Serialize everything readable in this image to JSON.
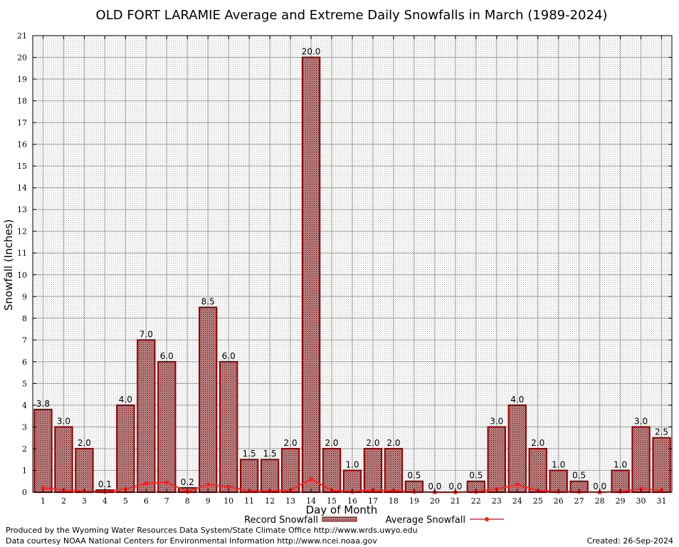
{
  "chart_data": {
    "type": "bar",
    "title": "OLD FORT LARAMIE Average and Extreme Daily Snowfalls in March (1989-2024)",
    "xlabel": "Day of Month",
    "ylabel": "Snowfall (Inches)",
    "ylim": [
      0,
      21
    ],
    "yticks": [
      "0",
      "1",
      "2",
      "3",
      "4",
      "5",
      "6",
      "7",
      "8",
      "9",
      "10",
      "11",
      "12",
      "13",
      "14",
      "15",
      "16",
      "17",
      "18",
      "19",
      "20",
      "21"
    ],
    "categories": [
      "1",
      "2",
      "3",
      "4",
      "5",
      "6",
      "7",
      "8",
      "9",
      "10",
      "11",
      "12",
      "13",
      "14",
      "15",
      "16",
      "17",
      "18",
      "19",
      "20",
      "21",
      "22",
      "23",
      "24",
      "25",
      "26",
      "27",
      "28",
      "29",
      "30",
      "31"
    ],
    "grid": true,
    "legend_position": "bottom",
    "series": [
      {
        "name": "Record Snowfall",
        "type": "bar",
        "color": "#8b0000",
        "values": [
          3.8,
          3.0,
          2.0,
          0.1,
          4.0,
          7.0,
          6.0,
          0.2,
          8.5,
          6.0,
          1.5,
          1.5,
          2.0,
          20.0,
          2.0,
          1.0,
          2.0,
          2.0,
          0.5,
          0.0,
          0.0,
          0.5,
          3.0,
          4.0,
          2.0,
          1.0,
          0.5,
          0.0,
          1.0,
          3.0,
          2.5
        ],
        "labels": [
          "3.8",
          "3.0",
          "2.0",
          "0.1",
          "4.0",
          "7.0",
          "6.0",
          "0.2",
          "8.5",
          "6.0",
          "1.5",
          "1.5",
          "2.0",
          "20.0",
          "2.0",
          "1.0",
          "2.0",
          "2.0",
          "0.5",
          "0.0",
          "0.0",
          "0.5",
          "3.0",
          "4.0",
          "2.0",
          "1.0",
          "0.5",
          "0.0",
          "1.0",
          "3.0",
          "2.5"
        ]
      },
      {
        "name": "Average Snowfall",
        "type": "line",
        "color": "#ff2020",
        "values": [
          0.2,
          0.1,
          0.05,
          0.02,
          0.15,
          0.4,
          0.45,
          0.03,
          0.35,
          0.25,
          0.06,
          0.05,
          0.1,
          0.6,
          0.08,
          0.03,
          0.1,
          0.07,
          0.02,
          0.0,
          0.0,
          0.02,
          0.15,
          0.35,
          0.07,
          0.03,
          0.02,
          0.0,
          0.03,
          0.15,
          0.1
        ]
      }
    ]
  },
  "footer": {
    "left_line1": "Produced by the Wyoming Water Resources Data System/State Climate Office http://www.wrds.uwyo.edu",
    "left_line2": "Data courtesy NOAA National Centers for Environmental Information http://www.ncei.noaa.gov",
    "created": "Created:  26-Sep-2024"
  }
}
